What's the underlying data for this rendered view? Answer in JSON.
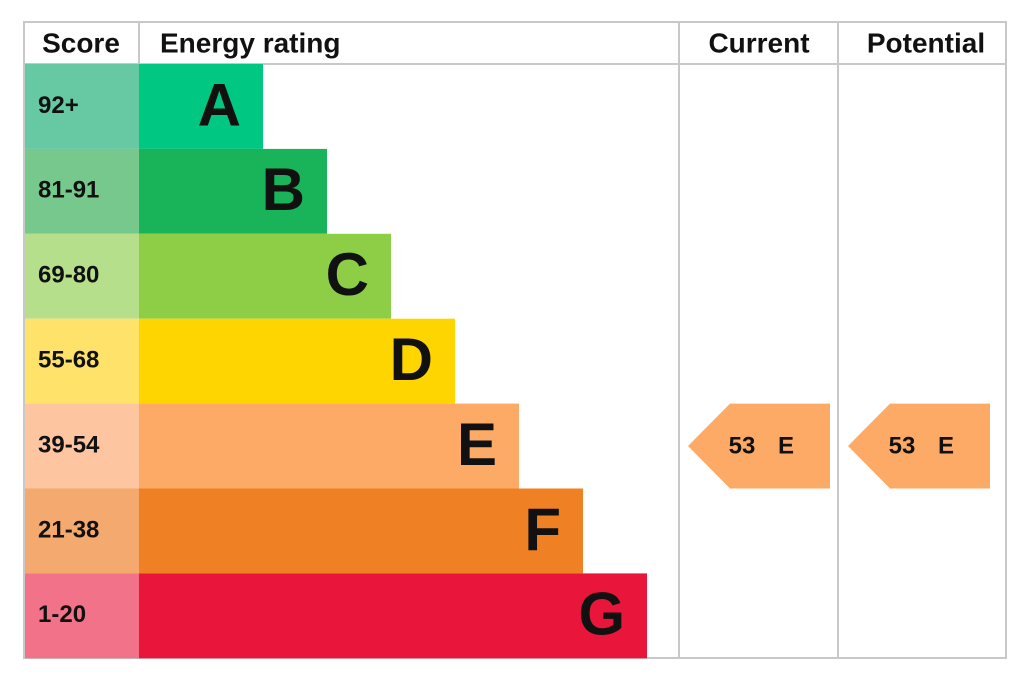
{
  "header": {
    "score": "Score",
    "rating": "Energy rating",
    "current": "Current",
    "potential": "Potential"
  },
  "rows": [
    {
      "score": "92+",
      "letter": "A",
      "score_color": "#66c9a3",
      "color": "#00c781"
    },
    {
      "score": "81-91",
      "letter": "B",
      "score_color": "#76c88c",
      "color": "#19b459"
    },
    {
      "score": "69-80",
      "letter": "C",
      "score_color": "#b6df8c",
      "color": "#8dce46"
    },
    {
      "score": "55-68",
      "letter": "D",
      "score_color": "#ffe26a",
      "color": "#ffd500"
    },
    {
      "score": "39-54",
      "letter": "E",
      "score_color": "#fdc5a0",
      "color": "#fcaa65"
    },
    {
      "score": "21-38",
      "letter": "F",
      "score_color": "#f4a96e",
      "color": "#ef8023"
    },
    {
      "score": "1-20",
      "letter": "G",
      "score_color": "#f17289",
      "color": "#e9153b"
    }
  ],
  "current": {
    "score": 53,
    "letter": "E",
    "color": "#fcaa65"
  },
  "potential": {
    "score": 53,
    "letter": "E",
    "color": "#fcaa65"
  }
}
